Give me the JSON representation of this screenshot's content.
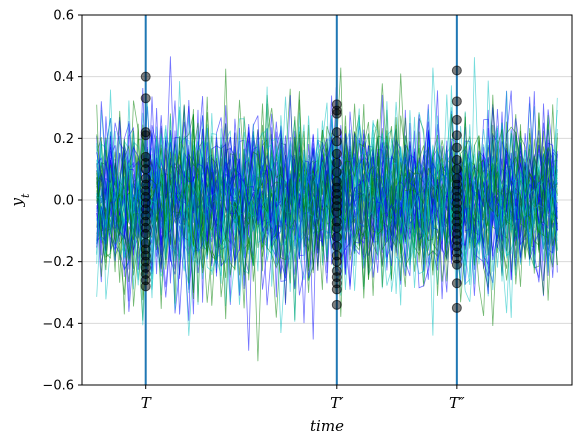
{
  "chart_data": {
    "type": "line",
    "title": "",
    "xlabel": "time",
    "ylabel": "y",
    "ylabel_subscript": "t",
    "ylim": [
      -0.6,
      0.6
    ],
    "yticks": [
      -0.6,
      -0.4,
      -0.2,
      0.0,
      0.2,
      0.4,
      0.6
    ],
    "ytick_labels": [
      "−0.6",
      "−0.4",
      "−0.2",
      "0.0",
      "0.2",
      "0.4",
      "0.6"
    ],
    "xlim": [
      0,
      100
    ],
    "grid": "horizontal",
    "legend": "none",
    "vertical_markers": [
      {
        "label": "T",
        "x": 13
      },
      {
        "label": "T′",
        "x": 52
      },
      {
        "label": "T″",
        "x": 76.5
      }
    ],
    "series_summary": {
      "count": 60,
      "points_per_series": 101,
      "mean": 0.0,
      "std": 0.13,
      "colors": [
        "#0000ff",
        "#008000",
        "#00bfbf"
      ],
      "opacity": 0.55
    },
    "cross_sections": [
      {
        "marker": "T",
        "y": [
          0.4,
          0.33,
          0.22,
          0.21,
          0.14,
          0.12,
          0.1,
          0.07,
          0.05,
          0.03,
          0.01,
          -0.01,
          -0.03,
          -0.05,
          -0.07,
          -0.09,
          -0.11,
          -0.14,
          -0.16,
          -0.18,
          -0.2,
          -0.22,
          -0.24,
          -0.26,
          -0.28
        ]
      },
      {
        "marker": "T′",
        "y": [
          0.31,
          0.29,
          0.28,
          0.22,
          0.19,
          0.15,
          0.12,
          0.09,
          0.06,
          0.04,
          0.02,
          0.0,
          -0.02,
          -0.04,
          -0.07,
          -0.09,
          -0.12,
          -0.15,
          -0.18,
          -0.2,
          -0.23,
          -0.25,
          -0.27,
          -0.29,
          -0.34
        ]
      },
      {
        "marker": "T″",
        "y": [
          0.42,
          0.32,
          0.26,
          0.21,
          0.17,
          0.13,
          0.1,
          0.07,
          0.05,
          0.03,
          0.01,
          -0.01,
          -0.03,
          -0.05,
          -0.07,
          -0.09,
          -0.11,
          -0.13,
          -0.15,
          -0.17,
          -0.19,
          -0.21,
          -0.27,
          -0.35
        ]
      }
    ],
    "colors": {
      "marker_line": "#1f77b4",
      "point": "#000000",
      "grid": "#d9d9d9"
    }
  }
}
